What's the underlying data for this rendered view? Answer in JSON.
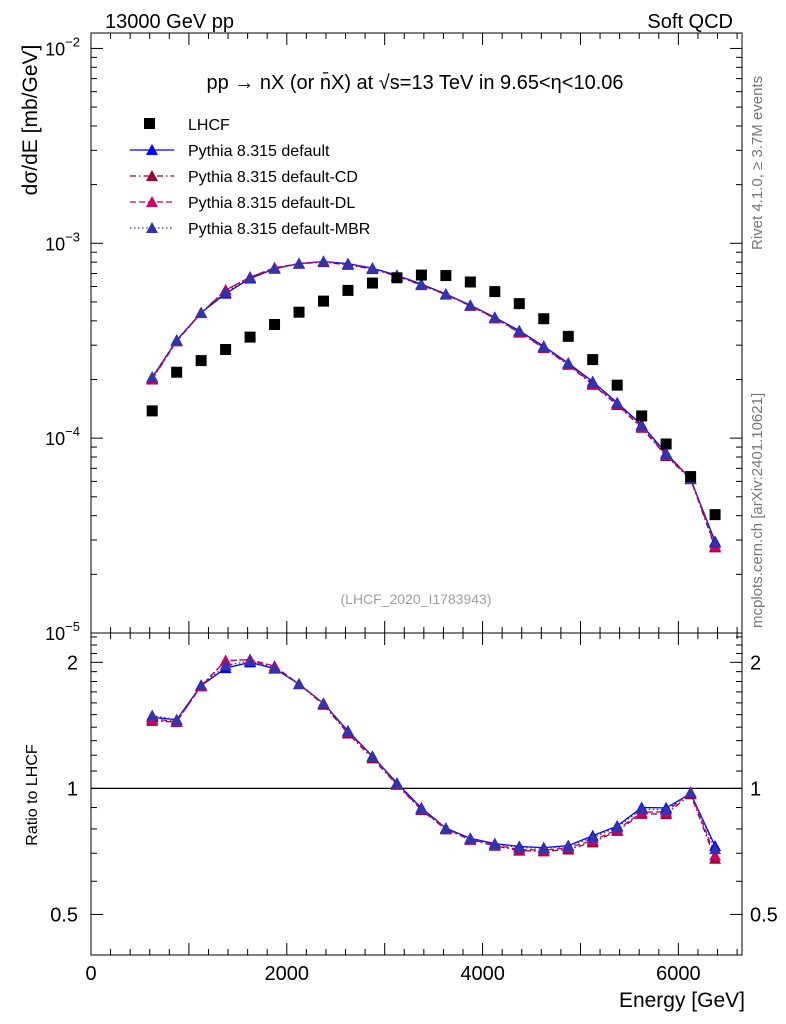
{
  "header": {
    "left": "13000 GeV pp",
    "right": "Soft QCD"
  },
  "side": {
    "top": "Rivet 4.1.0, ≥ 3.7M events",
    "bottom": "mcplots.cern.ch [arXiv:2401.10621]"
  },
  "chart_data": {
    "type": "scatter",
    "title": "pp → nX (or n̄X) at √s=13 TeV in 9.65<η<10.06",
    "watermark": "(LHCF_2020_I1783943)",
    "xlabel": "Energy [GeV]",
    "ylabel": "dσ/dE [mb/GeV]",
    "ratio_ylabel": "Ratio to LHCF",
    "xlim": [
      0,
      6650
    ],
    "ylim": [
      1e-05,
      0.012
    ],
    "yscale": "log",
    "ratio_ylim": [
      0.4,
      2.35
    ],
    "x_ticks": [
      0,
      2000,
      4000,
      6000
    ],
    "x_tick_labels": [
      "0",
      "2000",
      "4000",
      "6000"
    ],
    "y_ticks": [
      1e-05,
      0.0001,
      0.001,
      0.01
    ],
    "y_tick_labels": [
      "10",
      "10",
      "10",
      "10"
    ],
    "y_tick_exponents": [
      "−5",
      "−4",
      "−3",
      "−2"
    ],
    "ratio_ticks": [
      0.5,
      1,
      2
    ],
    "ratio_tick_labels": [
      "0.5",
      "1",
      "2"
    ],
    "x": [
      625,
      875,
      1125,
      1375,
      1625,
      1875,
      2125,
      2375,
      2625,
      2875,
      3125,
      3375,
      3625,
      3875,
      4125,
      4375,
      4625,
      4875,
      5125,
      5375,
      5625,
      5875,
      6125,
      6375
    ],
    "data": {
      "name": "LHCF",
      "values": [
        0.000138,
        0.000218,
        0.00025,
        0.000285,
        0.00033,
        0.000383,
        0.000443,
        0.000505,
        0.000573,
        0.000625,
        0.000665,
        0.000687,
        0.000683,
        0.000633,
        0.000565,
        0.00049,
        0.00041,
        0.000333,
        0.000253,
        0.000187,
        0.00013,
        9.33e-05,
        6.35e-05,
        4.05e-05
      ]
    },
    "series": [
      {
        "name": "Pythia 8.315 default",
        "color": "#0000ff",
        "style": "solid",
        "values": [
          0.000204,
          0.000318,
          0.00044,
          0.000552,
          0.00066,
          0.00074,
          0.000786,
          0.000806,
          0.000786,
          0.000746,
          0.000685,
          0.000617,
          0.000549,
          0.000481,
          0.000417,
          0.000356,
          0.000296,
          0.000243,
          0.000195,
          0.000152,
          0.000117,
          8.38e-05,
          6.17e-05,
          2.95e-05
        ]
      },
      {
        "name": "Pythia 8.315 default-CD",
        "color": "#990033",
        "style": "dashdot",
        "values": [
          0.0002,
          0.000314,
          0.00044,
          0.000575,
          0.00067,
          0.000742,
          0.000786,
          0.0008,
          0.000775,
          0.000737,
          0.000678,
          0.00061,
          0.000545,
          0.000477,
          0.000412,
          0.000348,
          0.00029,
          0.000238,
          0.000188,
          0.000148,
          0.000113,
          8.1e-05,
          6.15e-05,
          2.75e-05
        ]
      },
      {
        "name": "Pythia 8.315 default-DL",
        "color": "#cc0066",
        "style": "dashed",
        "values": [
          0.000202,
          0.000315,
          0.000438,
          0.000575,
          0.00067,
          0.00075,
          0.000786,
          0.000806,
          0.00078,
          0.000743,
          0.00068,
          0.000612,
          0.000547,
          0.000478,
          0.000414,
          0.00035,
          0.000292,
          0.00024,
          0.00019,
          0.000149,
          0.000114,
          8.2e-05,
          6.22e-05,
          2.8e-05
        ]
      },
      {
        "name": "Pythia 8.315 default-MBR",
        "color": "#3333aa",
        "style": "dotted",
        "values": [
          0.000206,
          0.000318,
          0.000441,
          0.00056,
          0.000665,
          0.000742,
          0.000787,
          0.000806,
          0.000784,
          0.000745,
          0.000683,
          0.000615,
          0.000548,
          0.00048,
          0.000416,
          0.000354,
          0.000295,
          0.000242,
          0.000193,
          0.000151,
          0.000116,
          8.3e-05,
          6.2e-05,
          2.9e-05
        ]
      }
    ]
  }
}
